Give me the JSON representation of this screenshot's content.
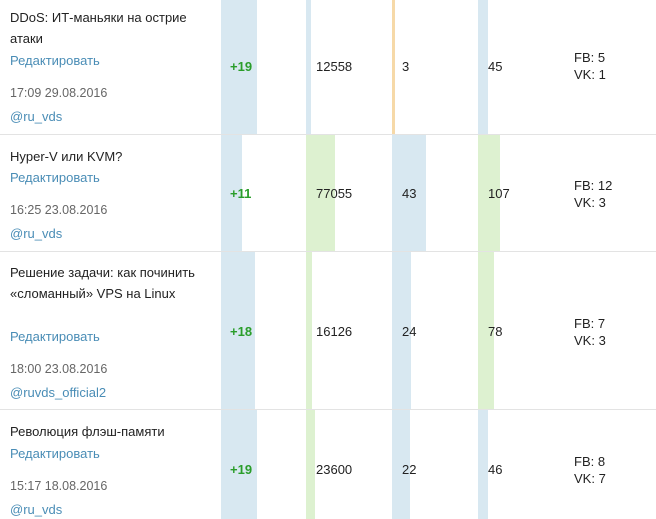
{
  "rows": [
    {
      "title": "DDoS: ИТ-маньяки на острие атаки",
      "edit_label": "Редактировать",
      "date": "17:09 29.08.2016",
      "author": "@ru_vds",
      "karma": "+19",
      "views": "12558",
      "comments": "3",
      "favorites": "45",
      "fb": "FB: 5",
      "vk": "VK: 1"
    },
    {
      "title": "Hyper-V или KVM?",
      "edit_label": "Редактировать",
      "date": "16:25 23.08.2016",
      "author": "@ru_vds",
      "karma": "+11",
      "views": "77055",
      "comments": "43",
      "favorites": "107",
      "fb": "FB: 12",
      "vk": "VK: 3"
    },
    {
      "title": "Решение задачи: как починить «сломанный» VPS на Linux",
      "edit_label": "Редактировать",
      "date": "18:00 23.08.2016",
      "author": "@ruvds_official2",
      "karma": "+18",
      "views": "16126",
      "comments": "24",
      "favorites": "78",
      "fb": "FB: 7",
      "vk": "VK: 3"
    },
    {
      "title": "Революция флэш-памяти",
      "edit_label": "Редактировать",
      "date": "15:17 18.08.2016",
      "author": "@ru_vds",
      "karma": "+19",
      "views": "23600",
      "comments": "22",
      "favorites": "46",
      "fb": "FB: 8",
      "vk": "VK: 7"
    }
  ]
}
